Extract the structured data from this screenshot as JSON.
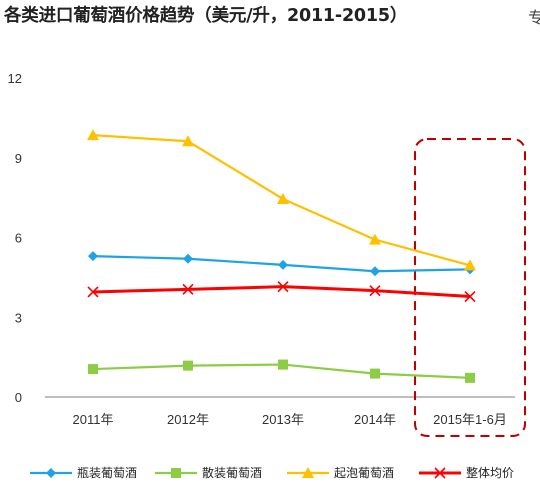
{
  "title": "各类进口葡萄酒价格趋势（美元/升，2011-2015）",
  "edge_mark": "专",
  "chart_data": {
    "type": "line",
    "categories": [
      "2011年",
      "2012年",
      "2013年",
      "2014年",
      "2015年1-6月"
    ],
    "ylim": [
      0,
      12
    ],
    "yticks": [
      0,
      3,
      6,
      9,
      12
    ],
    "grid": false,
    "legend_position": "bottom",
    "series": [
      {
        "name": "瓶装葡萄酒",
        "values": [
          5.3,
          5.2,
          4.97,
          4.73,
          4.8
        ],
        "color": "#1fa2e8",
        "marker": "diamond"
      },
      {
        "name": "散装葡萄酒",
        "values": [
          1.05,
          1.18,
          1.22,
          0.88,
          0.72
        ],
        "color": "#8ccd45",
        "marker": "square"
      },
      {
        "name": "起泡葡萄酒",
        "values": [
          9.85,
          9.62,
          7.45,
          5.92,
          4.95
        ],
        "color": "#ffc000",
        "marker": "triangle"
      },
      {
        "name": "整体均价",
        "values": [
          3.95,
          4.05,
          4.15,
          4.0,
          3.78
        ],
        "color": "#ff0000",
        "marker": "x"
      }
    ],
    "highlight": {
      "category": "2015年1-6月",
      "style": "red dashed rounded box"
    }
  }
}
